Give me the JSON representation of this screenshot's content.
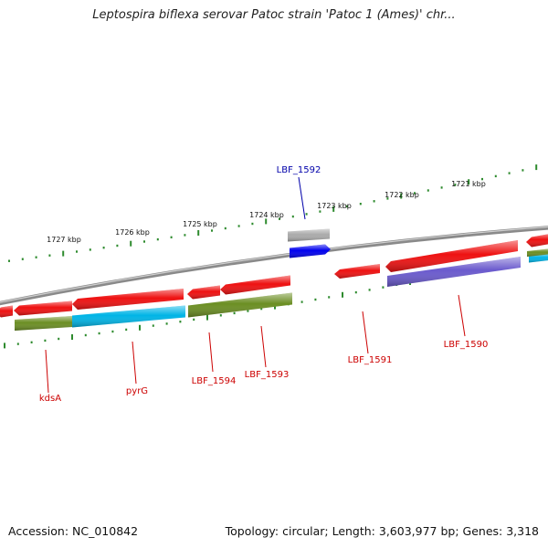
{
  "title": "Leptospira biflexa serovar Patoc strain 'Patoc 1 (Ames)' chr...",
  "footer": {
    "accession": "Accession: NC_010842",
    "topology": "Topology: circular; Length: 3,603,977 bp; Genes: 3,318"
  },
  "colors": {
    "backbone": "#8a8a8a",
    "tick": "#2e8b2e",
    "label_red": "#cc0000",
    "label_blue": "#0000aa",
    "gene_red": "#ee1111",
    "gene_olive": "#6b8e23",
    "gene_cyan": "#00b4e6",
    "gene_slate": "#6a5acd",
    "gene_blue": "#0000ee",
    "gene_gray": "#aaaaaa"
  },
  "scale_labels": [
    "1727 kbp",
    "1726 kbp",
    "1725 kbp",
    "1724 kbp",
    "1723 kbp",
    "1722 kbp",
    "1721 kbp"
  ],
  "gene_labels": [
    {
      "name": "kdsA",
      "color": "red"
    },
    {
      "name": "pyrG",
      "color": "red"
    },
    {
      "name": "LBF_1594",
      "color": "red"
    },
    {
      "name": "LBF_1593",
      "color": "red"
    },
    {
      "name": "LBF_1592",
      "color": "blue"
    },
    {
      "name": "LBF_1591",
      "color": "red"
    },
    {
      "name": "LBF_1590",
      "color": "red"
    }
  ]
}
